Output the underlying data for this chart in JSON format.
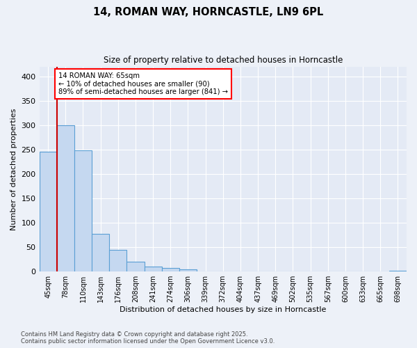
{
  "title": "14, ROMAN WAY, HORNCASTLE, LN9 6PL",
  "subtitle": "Size of property relative to detached houses in Horncastle",
  "xlabel": "Distribution of detached houses by size in Horncastle",
  "ylabel": "Number of detached properties",
  "categories": [
    "45sqm",
    "78sqm",
    "110sqm",
    "143sqm",
    "176sqm",
    "208sqm",
    "241sqm",
    "274sqm",
    "306sqm",
    "339sqm",
    "372sqm",
    "404sqm",
    "437sqm",
    "469sqm",
    "502sqm",
    "535sqm",
    "567sqm",
    "600sqm",
    "633sqm",
    "665sqm",
    "698sqm"
  ],
  "values": [
    245,
    300,
    248,
    77,
    45,
    20,
    10,
    7,
    5,
    1,
    0,
    0,
    0,
    0,
    0,
    0,
    0,
    0,
    1,
    0,
    2
  ],
  "bar_color": "#c5d8f0",
  "bar_edge_color": "#5a9fd4",
  "annotation_title": "14 ROMAN WAY: 65sqm",
  "annotation_line1": "← 10% of detached houses are smaller (90)",
  "annotation_line2": "89% of semi-detached houses are larger (841) →",
  "annotation_box_color": "white",
  "annotation_box_edge_color": "red",
  "red_line_color": "#cc0000",
  "background_color": "#edf1f8",
  "plot_bg_color": "#e4eaf5",
  "grid_color": "#ffffff",
  "ylim": [
    0,
    420
  ],
  "yticks": [
    0,
    50,
    100,
    150,
    200,
    250,
    300,
    350,
    400
  ],
  "red_line_x": 0.5,
  "footer1": "Contains HM Land Registry data © Crown copyright and database right 2025.",
  "footer2": "Contains public sector information licensed under the Open Government Licence v3.0."
}
